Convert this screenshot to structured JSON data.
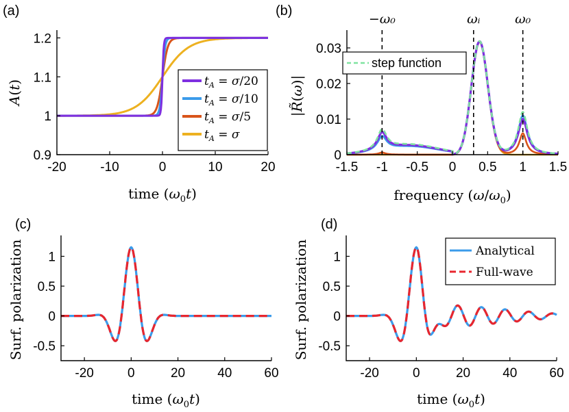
{
  "chart_data": [
    {
      "panel": "(a)",
      "type": "line",
      "xlabel": "time (ω₀t)",
      "ylabel": "A(t)",
      "xlim": [
        -20,
        20
      ],
      "ylim": [
        0.9,
        1.22
      ],
      "xticks": [
        "-20",
        "-10",
        "0",
        "10",
        "20"
      ],
      "yticks": [
        "0.9",
        "1",
        "1.1",
        "1.2"
      ],
      "legend_position": "bottom-right",
      "series": [
        {
          "name": "tA = σ/20",
          "color": "#7E2FE0",
          "width_param": 0.25,
          "x": [
            -20,
            -10,
            -2,
            -1,
            -0.5,
            0,
            0.5,
            1,
            2,
            10,
            20
          ],
          "y": [
            1.0,
            1.0,
            1.0,
            1.0,
            1.02,
            1.1,
            1.18,
            1.2,
            1.2,
            1.2,
            1.2
          ]
        },
        {
          "name": "tA = σ/10",
          "color": "#3B9BEA",
          "width_param": 0.5,
          "x": [
            -20,
            -10,
            -3,
            -2,
            -1,
            0,
            1,
            2,
            3,
            10,
            20
          ],
          "y": [
            1.0,
            1.0,
            1.0,
            1.0,
            1.03,
            1.1,
            1.17,
            1.2,
            1.2,
            1.2,
            1.2
          ]
        },
        {
          "name": "tA = σ/5",
          "color": "#D9541A",
          "width_param": 1.0,
          "x": [
            -20,
            -10,
            -5,
            -3,
            -2,
            -1,
            0,
            1,
            2,
            3,
            5,
            10,
            20
          ],
          "y": [
            1.0,
            1.0,
            1.0,
            1.005,
            1.02,
            1.05,
            1.1,
            1.15,
            1.18,
            1.195,
            1.2,
            1.2,
            1.2
          ]
        },
        {
          "name": "tA = σ",
          "color": "#EDB120",
          "width_param": 5.0,
          "x": [
            -20,
            -15,
            -10,
            -5,
            -2,
            0,
            2,
            5,
            10,
            15,
            20
          ],
          "y": [
            1.004,
            1.012,
            1.025,
            1.059,
            1.08,
            1.1,
            1.12,
            1.141,
            1.175,
            1.188,
            1.196
          ]
        }
      ]
    },
    {
      "panel": "(b)",
      "type": "line",
      "xlabel": "frequency (ω/ω₀)",
      "ylabel": "|R̃(ω)|",
      "xlim": [
        -1.5,
        1.5
      ],
      "ylim": [
        0,
        0.035
      ],
      "xticks": [
        "-1.5",
        "-1",
        "-0.5",
        "0",
        "0.5",
        "1",
        "1.5"
      ],
      "yticks": [
        "0",
        "0.01",
        "0.02",
        "0.03"
      ],
      "top_markers": [
        {
          "label": "−ω₀",
          "x": -1
        },
        {
          "label": "ωᵢ",
          "x": 0.3
        },
        {
          "label": "ω₀",
          "x": 1
        }
      ],
      "legend": {
        "label": "step function",
        "position": "top-left"
      },
      "peaks": {
        "center": 0.38,
        "height": 0.033,
        "left_peak": 0.0055,
        "right_peak": 0.012
      }
    },
    {
      "panel": "(c)",
      "type": "line",
      "xlabel": "time (ω₀t)",
      "ylabel": "Surf. polarization",
      "xlim": [
        -30,
        60
      ],
      "ylim": [
        -0.75,
        1.35
      ],
      "xticks": [
        "-20",
        "0",
        "20",
        "40",
        "60"
      ],
      "yticks": [
        "-0.5",
        "0",
        "0.5",
        "1"
      ],
      "series": [
        {
          "name": "Analytical",
          "color": "#3B9BEA"
        },
        {
          "name": "Full-wave",
          "color": "#E8262E",
          "dashed": true
        }
      ],
      "peak": 1.15,
      "trough": -0.48
    },
    {
      "panel": "(d)",
      "type": "line",
      "xlabel": "time (ω₀t)",
      "ylabel": "Surf. polarization",
      "xlim": [
        -30,
        60
      ],
      "ylim": [
        -0.75,
        1.35
      ],
      "xticks": [
        "-20",
        "0",
        "20",
        "40",
        "60"
      ],
      "yticks": [
        "-0.5",
        "0",
        "0.5",
        "1"
      ],
      "legend_position": "top-right",
      "series": [
        {
          "name": "Analytical",
          "color": "#3B9BEA"
        },
        {
          "name": "Full-wave",
          "color": "#E8262E",
          "dashed": true
        }
      ],
      "peak": 1.18,
      "trough": -0.62
    }
  ],
  "panels": {
    "a": {
      "label": "(a)"
    },
    "b": {
      "label": "(b)"
    },
    "c": {
      "label": "(c)"
    },
    "d": {
      "label": "(d)"
    }
  },
  "legend_a": [
    "tA = σ/20",
    "tA = σ/10",
    "tA = σ/5",
    "tA = σ"
  ],
  "legend_b": "step function",
  "legend_d": [
    "Analytical",
    "Full-wave"
  ]
}
